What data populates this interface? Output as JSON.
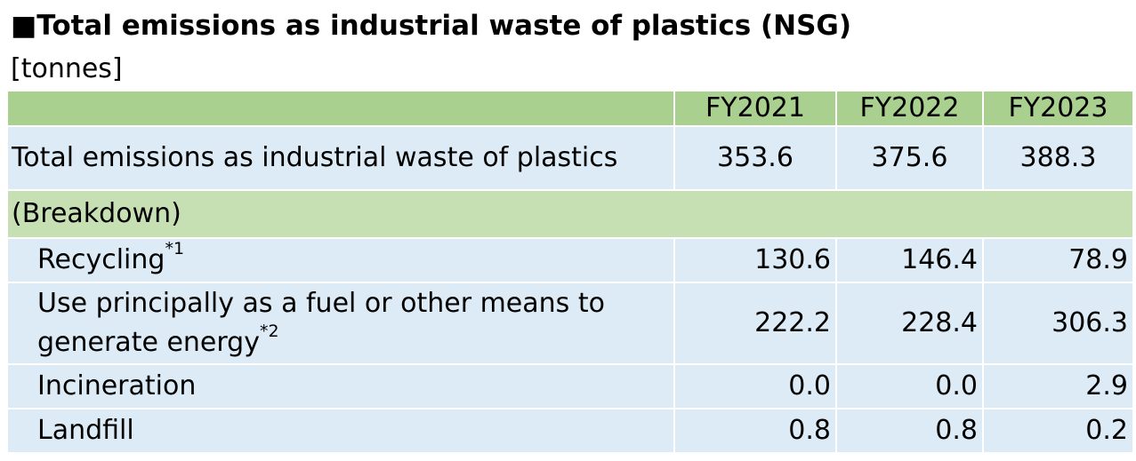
{
  "title": "■Total emissions as industrial waste of plastics (NSG)",
  "unit": "[tonnes]",
  "table": {
    "years": [
      "FY2021",
      "FY2022",
      "FY2023"
    ],
    "total": {
      "label": "Total emissions as industrial waste of plastics",
      "values": [
        "353.6",
        "375.6",
        "388.3"
      ]
    },
    "breakdown_label": "(Breakdown)",
    "rows": [
      {
        "label": "Recycling",
        "note": "*1",
        "values": [
          "130.6",
          "146.4",
          "78.9"
        ]
      },
      {
        "label_line1": "Use principally as a fuel or other means to",
        "label_line2": "generate energy",
        "note": "*2",
        "values": [
          "222.2",
          "228.4",
          "306.3"
        ]
      },
      {
        "label": "Incineration",
        "values": [
          "0.0",
          "0.0",
          "2.9"
        ]
      },
      {
        "label": "Landfill",
        "values": [
          "0.8",
          "0.8",
          "0.2"
        ]
      }
    ]
  },
  "colors": {
    "header_green": "#a9d08e",
    "breakdown_green": "#c6e0b4",
    "row_blue": "#ddebf7"
  }
}
